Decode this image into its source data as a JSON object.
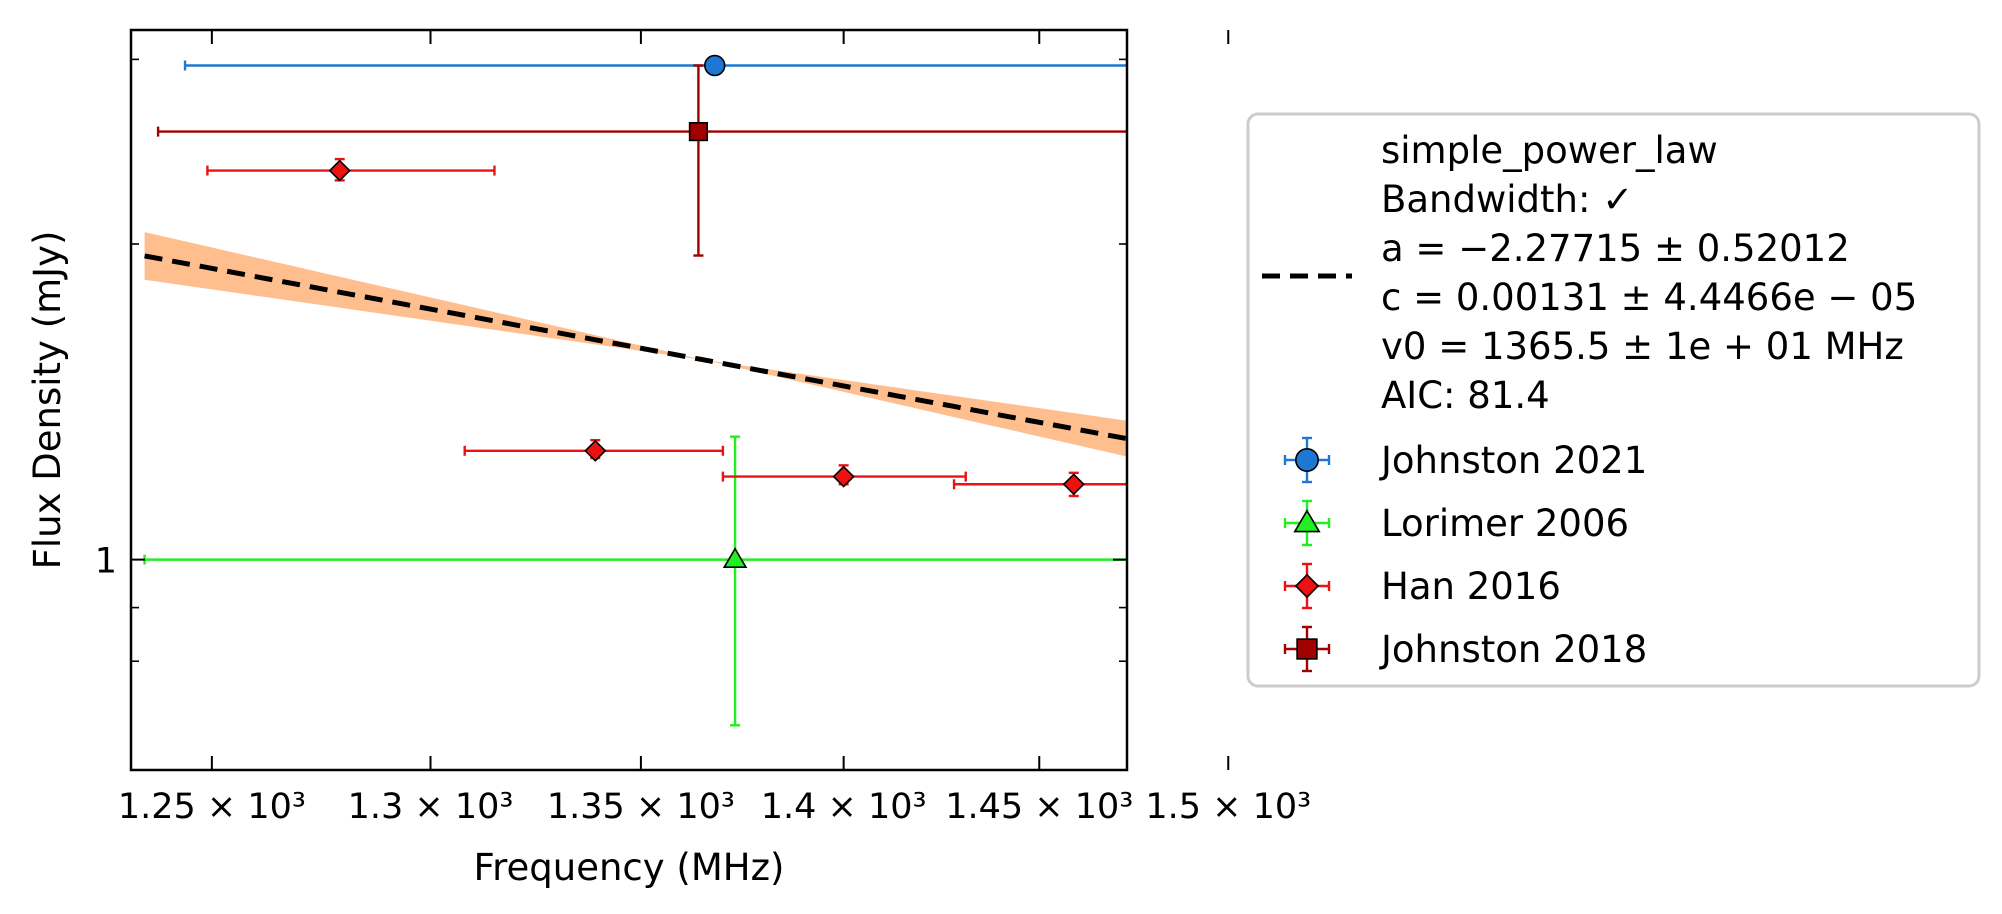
{
  "chart_data": {
    "type": "scatter",
    "title": "",
    "xlabel": "Frequency (MHz)",
    "ylabel": "Flux Density (mJy)",
    "xscale": "log",
    "yscale": "log",
    "xlim": [
      1232,
      1473
    ],
    "ylim": [
      0.63,
      3.2
    ],
    "x_ticks": [
      {
        "value": 1250,
        "label": "1.25 × 10³"
      },
      {
        "value": 1300,
        "label": "1.3 × 10³"
      },
      {
        "value": 1350,
        "label": "1.35 × 10³"
      },
      {
        "value": 1400,
        "label": "1.4 × 10³"
      },
      {
        "value": 1450,
        "label": "1.45 × 10³"
      },
      {
        "value": 1500,
        "label": "1.5 × 10³"
      }
    ],
    "y_ticks": [
      {
        "value": 1,
        "label": "1"
      }
    ],
    "y_minor_ticks": [
      0.8,
      0.9,
      2,
      3
    ],
    "reference_line": {
      "y": 1,
      "style": "dotted",
      "color": "#b0b0b0"
    },
    "fit": {
      "label_lines": [
        "simple_power_law",
        "Bandwidth: ✓",
        "a = −2.27715 ± 0.52012",
        "c = 0.00131 ± 4.4466e − 05",
        "v0 = 1365.5 ± 1e + 01 MHz",
        "AIC: 81.4"
      ],
      "a": -2.27715,
      "a_err": 0.52012,
      "c": 0.00131,
      "v0": 1365.5,
      "freq_range": [
        1235,
        1519
      ],
      "line_color": "#000000",
      "band_color": "#ffbb88"
    },
    "series": [
      {
        "name": "Johnston 2021",
        "marker": "circle",
        "color": "#1f77d4",
        "points": [
          {
            "x": 1368,
            "y": 2.96,
            "xerr_low": 1244,
            "xerr_high": 1492,
            "yerr_low": 2.96,
            "yerr_high": 2.96
          }
        ]
      },
      {
        "name": "Lorimer 2006",
        "marker": "triangle",
        "color": "#22ee22",
        "points": [
          {
            "x": 1373,
            "y": 1.0,
            "xerr_low": 1235,
            "xerr_high": 1519,
            "yerr_low": 0.695,
            "yerr_high": 1.31
          }
        ]
      },
      {
        "name": "Han 2016",
        "marker": "diamond",
        "color": "#ee1111",
        "points": [
          {
            "x": 1279,
            "y": 2.35,
            "xerr_low": 1249,
            "xerr_high": 1315,
            "yerr_low": 2.3,
            "yerr_high": 2.41
          },
          {
            "x": 1339,
            "y": 1.27,
            "xerr_low": 1308,
            "xerr_high": 1370,
            "yerr_low": 1.25,
            "yerr_high": 1.3
          },
          {
            "x": 1400,
            "y": 1.2,
            "xerr_low": 1370,
            "xerr_high": 1431,
            "yerr_low": 1.18,
            "yerr_high": 1.23
          },
          {
            "x": 1459,
            "y": 1.18,
            "xerr_low": 1428,
            "xerr_high": 1491,
            "yerr_low": 1.15,
            "yerr_high": 1.21
          }
        ]
      },
      {
        "name": "Johnston 2018",
        "marker": "square",
        "color": "#a00000",
        "points": [
          {
            "x": 1364,
            "y": 2.56,
            "xerr_low": 1238,
            "xerr_high": 1486,
            "yerr_low": 1.95,
            "yerr_high": 2.96
          }
        ]
      }
    ],
    "legend": {
      "position": "right-outside"
    }
  }
}
